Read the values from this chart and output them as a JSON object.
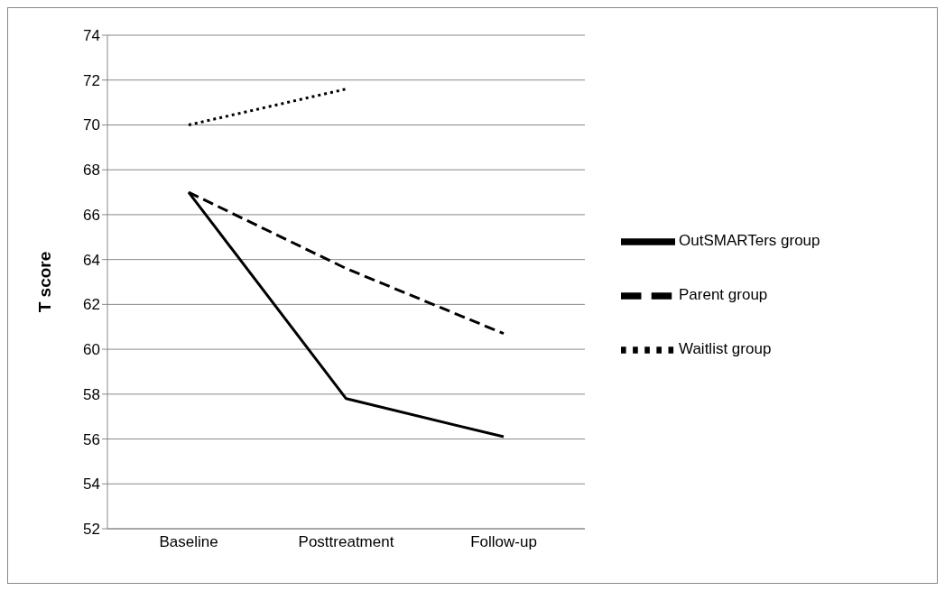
{
  "chart_data": {
    "type": "line",
    "ylabel": "T score",
    "categories": [
      "Baseline",
      "Posttreatment",
      "Follow-up"
    ],
    "series": [
      {
        "name": "OutSMARTers group",
        "color": "#000000",
        "line_style": "solid",
        "values": [
          67.0,
          57.8,
          56.1
        ]
      },
      {
        "name": "Parent group",
        "color": "#000000",
        "line_style": "dashed",
        "values": [
          67.0,
          63.6,
          60.7
        ]
      },
      {
        "name": "Waitlist group",
        "color": "#000000",
        "line_style": "dotted",
        "values": [
          70.0,
          71.6,
          null
        ]
      }
    ],
    "ylim": [
      52,
      74
    ],
    "yticks": [
      52,
      54,
      56,
      58,
      60,
      62,
      64,
      66,
      68,
      70,
      72,
      74
    ],
    "grid": "y",
    "legend": "right",
    "marker": "none"
  }
}
